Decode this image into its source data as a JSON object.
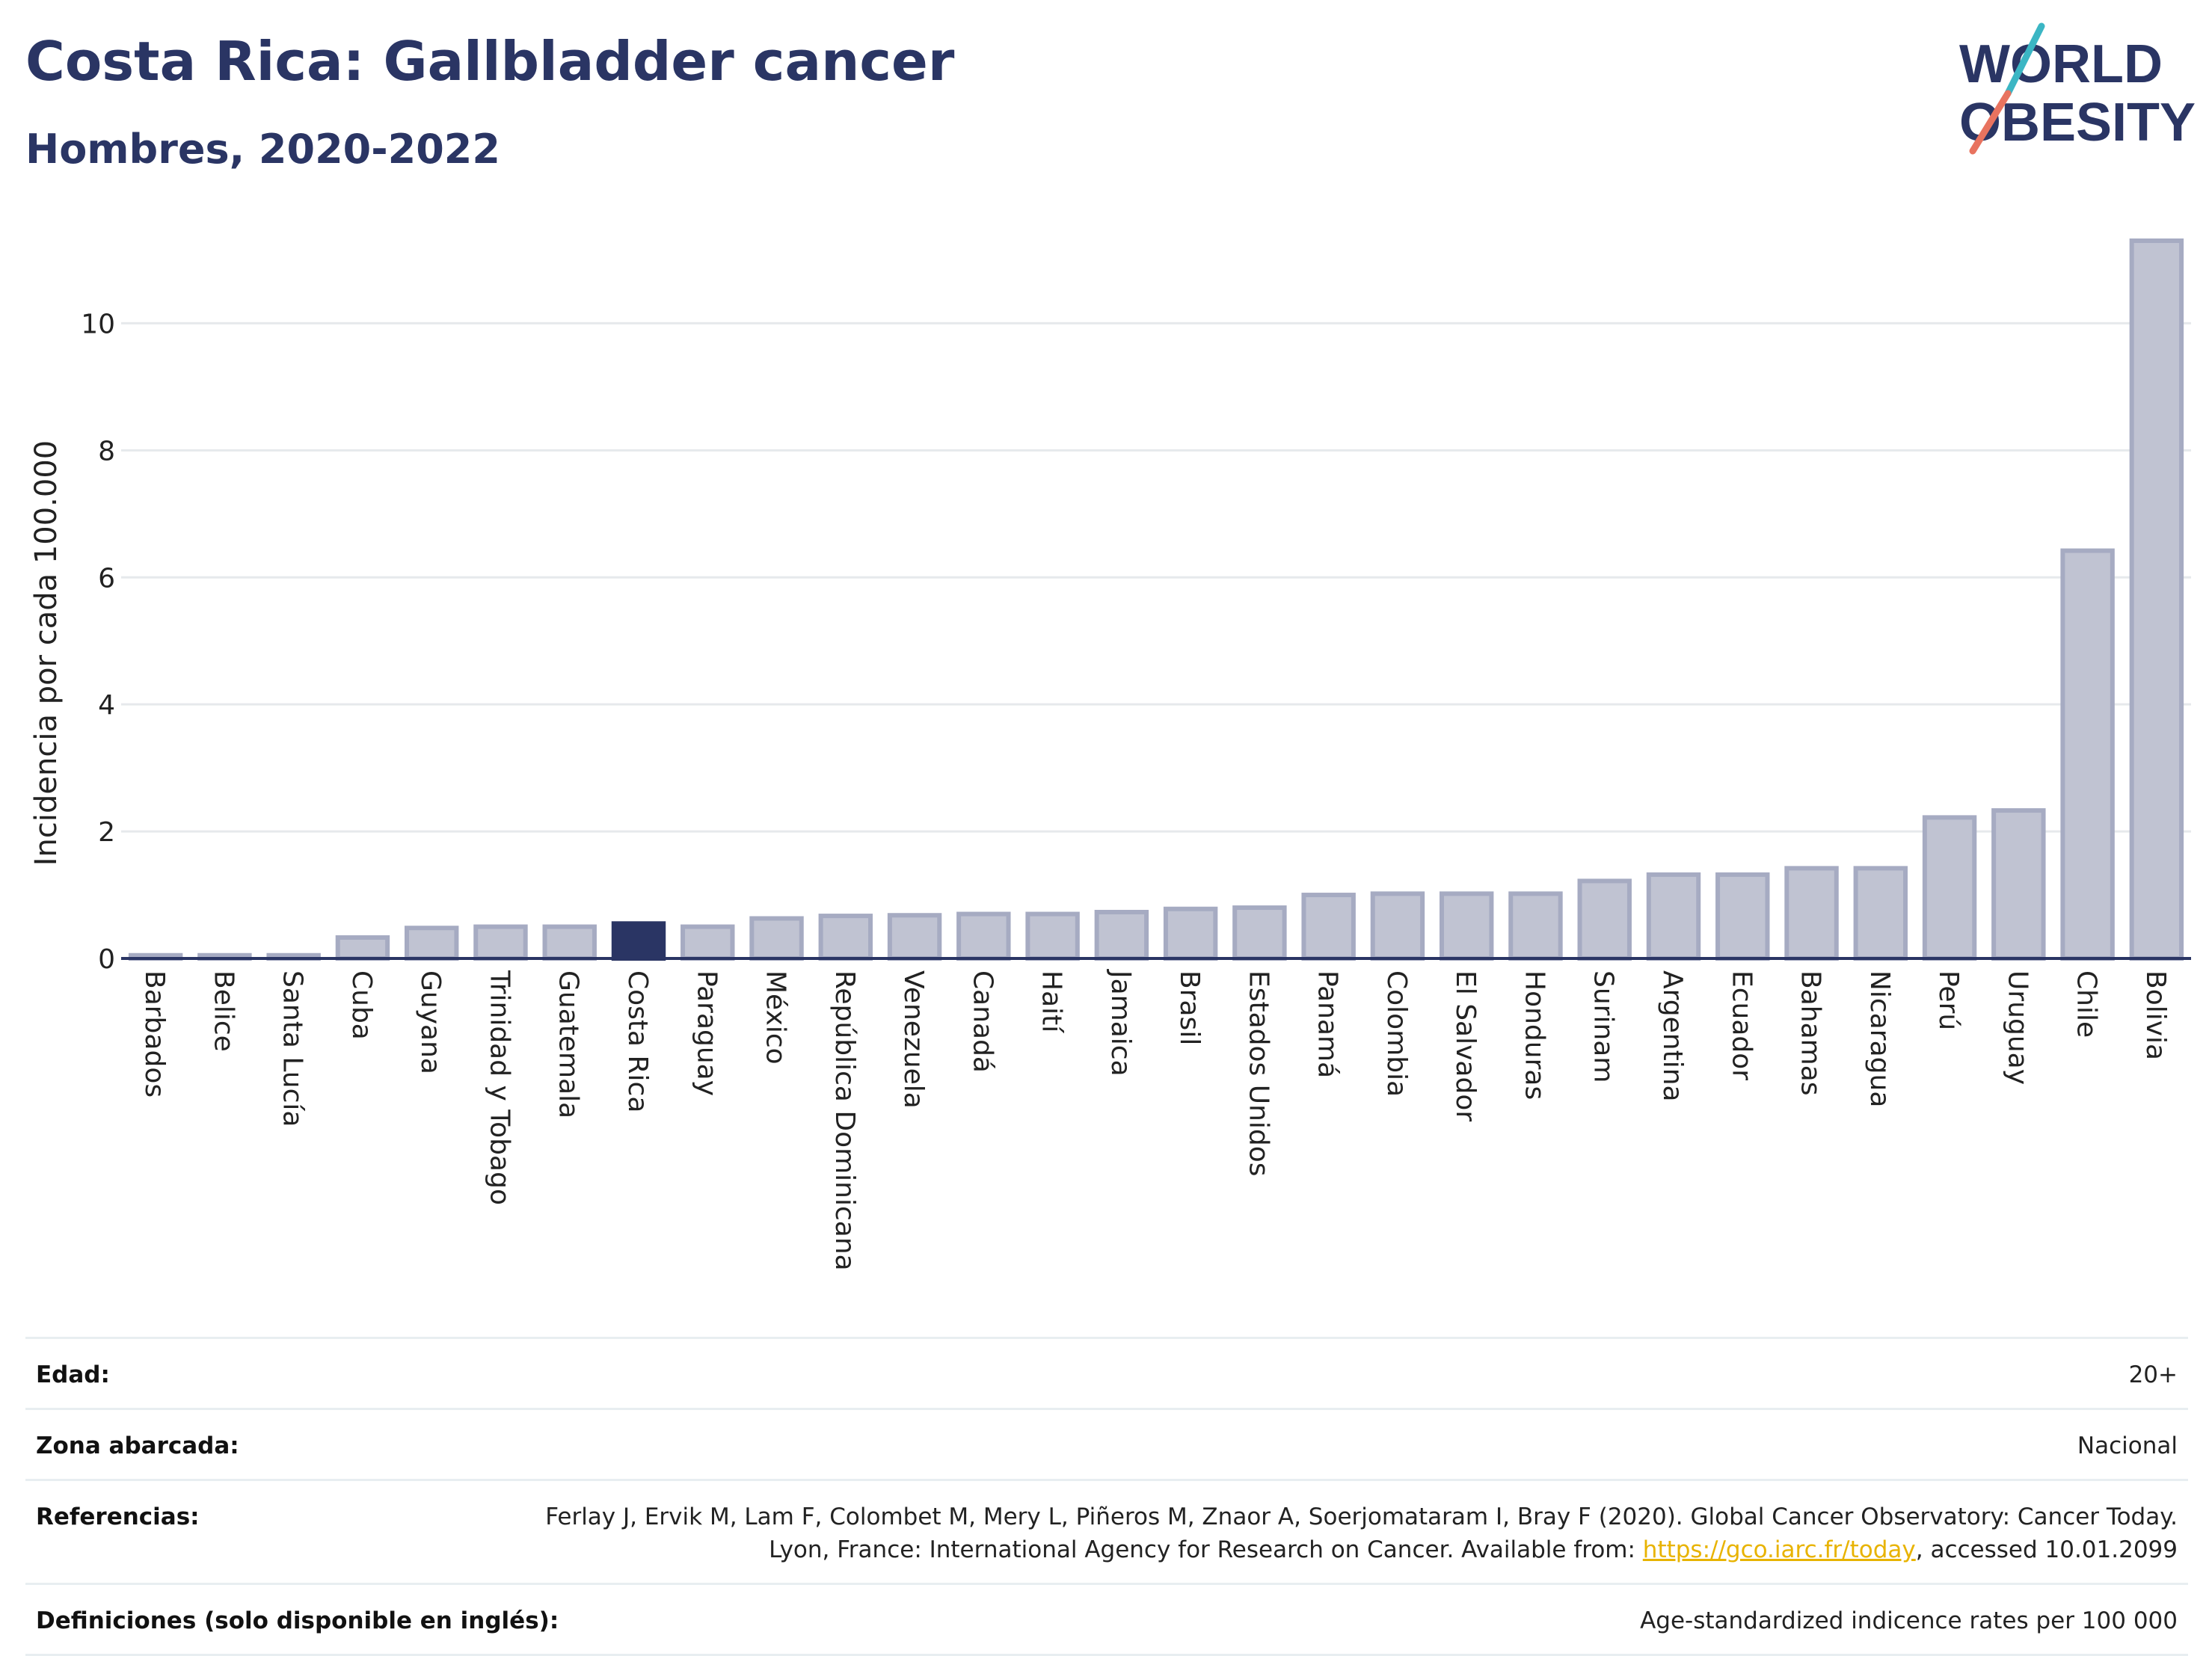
{
  "header": {
    "title": "Costa Rica: Gallbladder cancer",
    "subtitle": "Hombres, 2020-2022"
  },
  "logo": {
    "line1": "WORLD",
    "line2": "OBESITY"
  },
  "colors": {
    "bar": "#c0c3d2",
    "bar_stroke": "#a6abc2",
    "highlight": "#2a3564",
    "grid": "#e6e9ec",
    "axis": "#2a3564",
    "logo_text": "#2a3564",
    "logo_slash_top": "#3bb6c4",
    "logo_slash_bottom": "#e8735f"
  },
  "chart_data": {
    "type": "bar",
    "ylabel": "Incidencia por cada 100.000",
    "xlabel": "",
    "ylim": [
      0,
      11.5
    ],
    "yticks": [
      0,
      2,
      4,
      6,
      8,
      10
    ],
    "grid": true,
    "highlight": "Costa Rica",
    "categories": [
      "Barbados",
      "Belice",
      "Santa Lucía",
      "Cuba",
      "Guyana",
      "Trinidad y Tobago",
      "Guatemala",
      "Costa Rica",
      "Paraguay",
      "México",
      "República Dominicana",
      "Venezuela",
      "Canadá",
      "Haití",
      "Jamaica",
      "Brasil",
      "Estados Unidos",
      "Panamá",
      "Colombia",
      "El Salvador",
      "Honduras",
      "Surinam",
      "Argentina",
      "Ecuador",
      "Bahamas",
      "Nicaragua",
      "Perú",
      "Uruguay",
      "Chile",
      "Bolivia"
    ],
    "values": [
      0.05,
      0.05,
      0.05,
      0.33,
      0.48,
      0.5,
      0.5,
      0.55,
      0.5,
      0.63,
      0.67,
      0.68,
      0.7,
      0.7,
      0.73,
      0.78,
      0.8,
      1.0,
      1.02,
      1.02,
      1.02,
      1.22,
      1.32,
      1.32,
      1.42,
      1.42,
      2.22,
      2.33,
      6.42,
      11.3
    ]
  },
  "metadata": [
    {
      "label": "Edad:",
      "value": "20+"
    },
    {
      "label": "Zona abarcada:",
      "value": "Nacional"
    },
    {
      "label": "Referencias:",
      "value": "Ferlay J, Ervik M, Lam F, Colombet M, Mery L, Piñeros M, Znaor A, Soerjomataram I, Bray F (2020). Global Cancer Observatory: Cancer Today. Lyon, France: International Agency for Research on Cancer. Available from:",
      "link": "https://gco.iarc.fr/today",
      "suffix": ", accessed 10.01.2099"
    },
    {
      "label": "Definiciones (solo disponible en inglés):",
      "value": "Age-standardized indicence rates per 100 000"
    }
  ]
}
